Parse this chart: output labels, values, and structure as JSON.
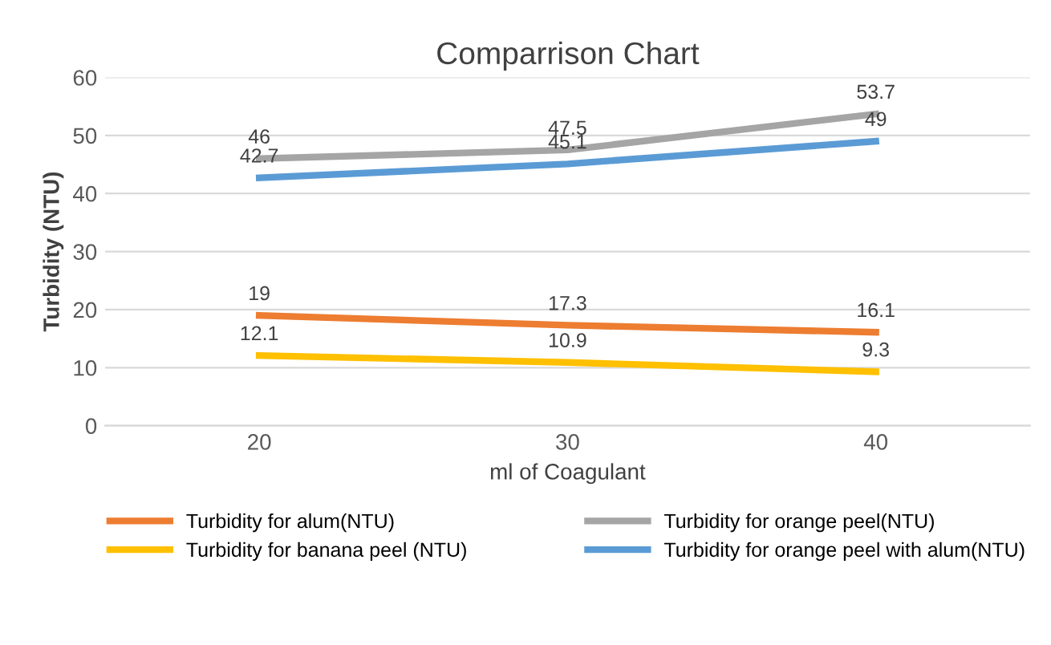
{
  "chart_data": {
    "type": "line",
    "title": "Comparrison Chart",
    "xlabel": "ml of Coagulant",
    "ylabel": "Turbidity (NTU)",
    "categories": [
      "20",
      "30",
      "40"
    ],
    "series": [
      {
        "name": "Turbidity for alum(NTU)",
        "color": "#ed7d31",
        "values": [
          19,
          17.3,
          16.1
        ]
      },
      {
        "name": "Turbidity for orange peel(NTU)",
        "color": "#a5a5a5",
        "values": [
          46,
          47.5,
          53.7
        ]
      },
      {
        "name": "Turbidity for banana peel (NTU)",
        "color": "#ffc000",
        "values": [
          12.1,
          10.9,
          9.3
        ]
      },
      {
        "name": "Turbidity for orange peel with alum(NTU)",
        "color": "#5b9bd5",
        "values": [
          42.7,
          45.1,
          49
        ]
      }
    ],
    "ylim": [
      0,
      60
    ],
    "yticks": [
      0,
      10,
      20,
      30,
      40,
      50,
      60
    ],
    "grid": "y",
    "legend": "bottom",
    "data_labels": true,
    "marker": "none",
    "line_style": "solid"
  }
}
